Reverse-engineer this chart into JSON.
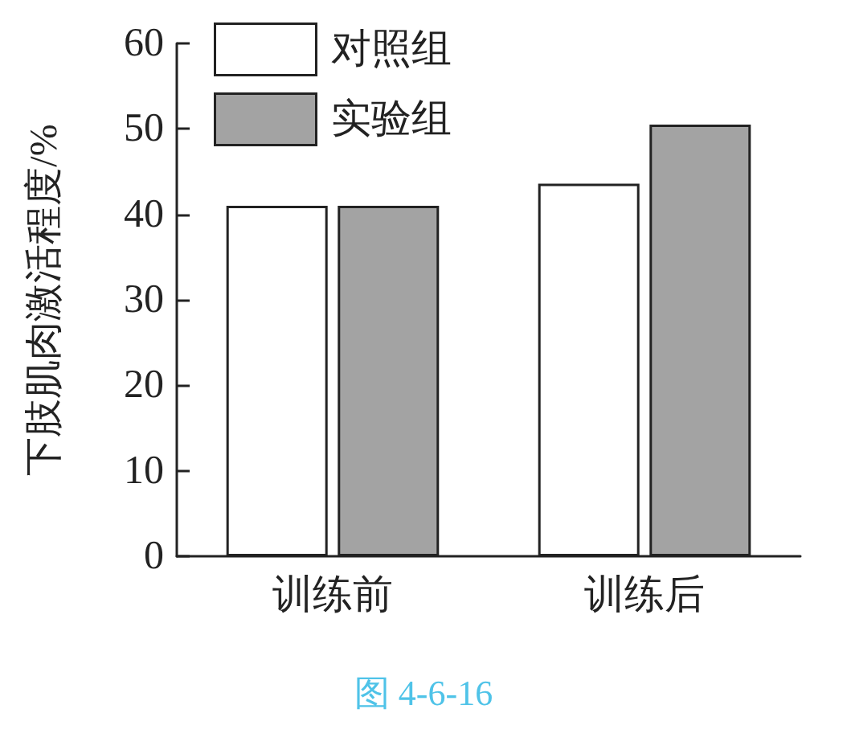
{
  "chart_data": {
    "type": "bar",
    "ylabel": "下肢肌肉激活程度/%",
    "categories": [
      "训练前",
      "训练后"
    ],
    "series": [
      {
        "name": "对照组",
        "color": "#ffffff",
        "values": [
          41,
          43.6
        ]
      },
      {
        "name": "实验组",
        "color": "#a3a3a3",
        "values": [
          41,
          50.5
        ]
      }
    ],
    "ylim": [
      0,
      60
    ],
    "yticks": [
      0,
      10,
      20,
      30,
      40,
      50,
      60
    ],
    "legend": "top left",
    "annotations": [
      "图 4-6-16"
    ]
  }
}
